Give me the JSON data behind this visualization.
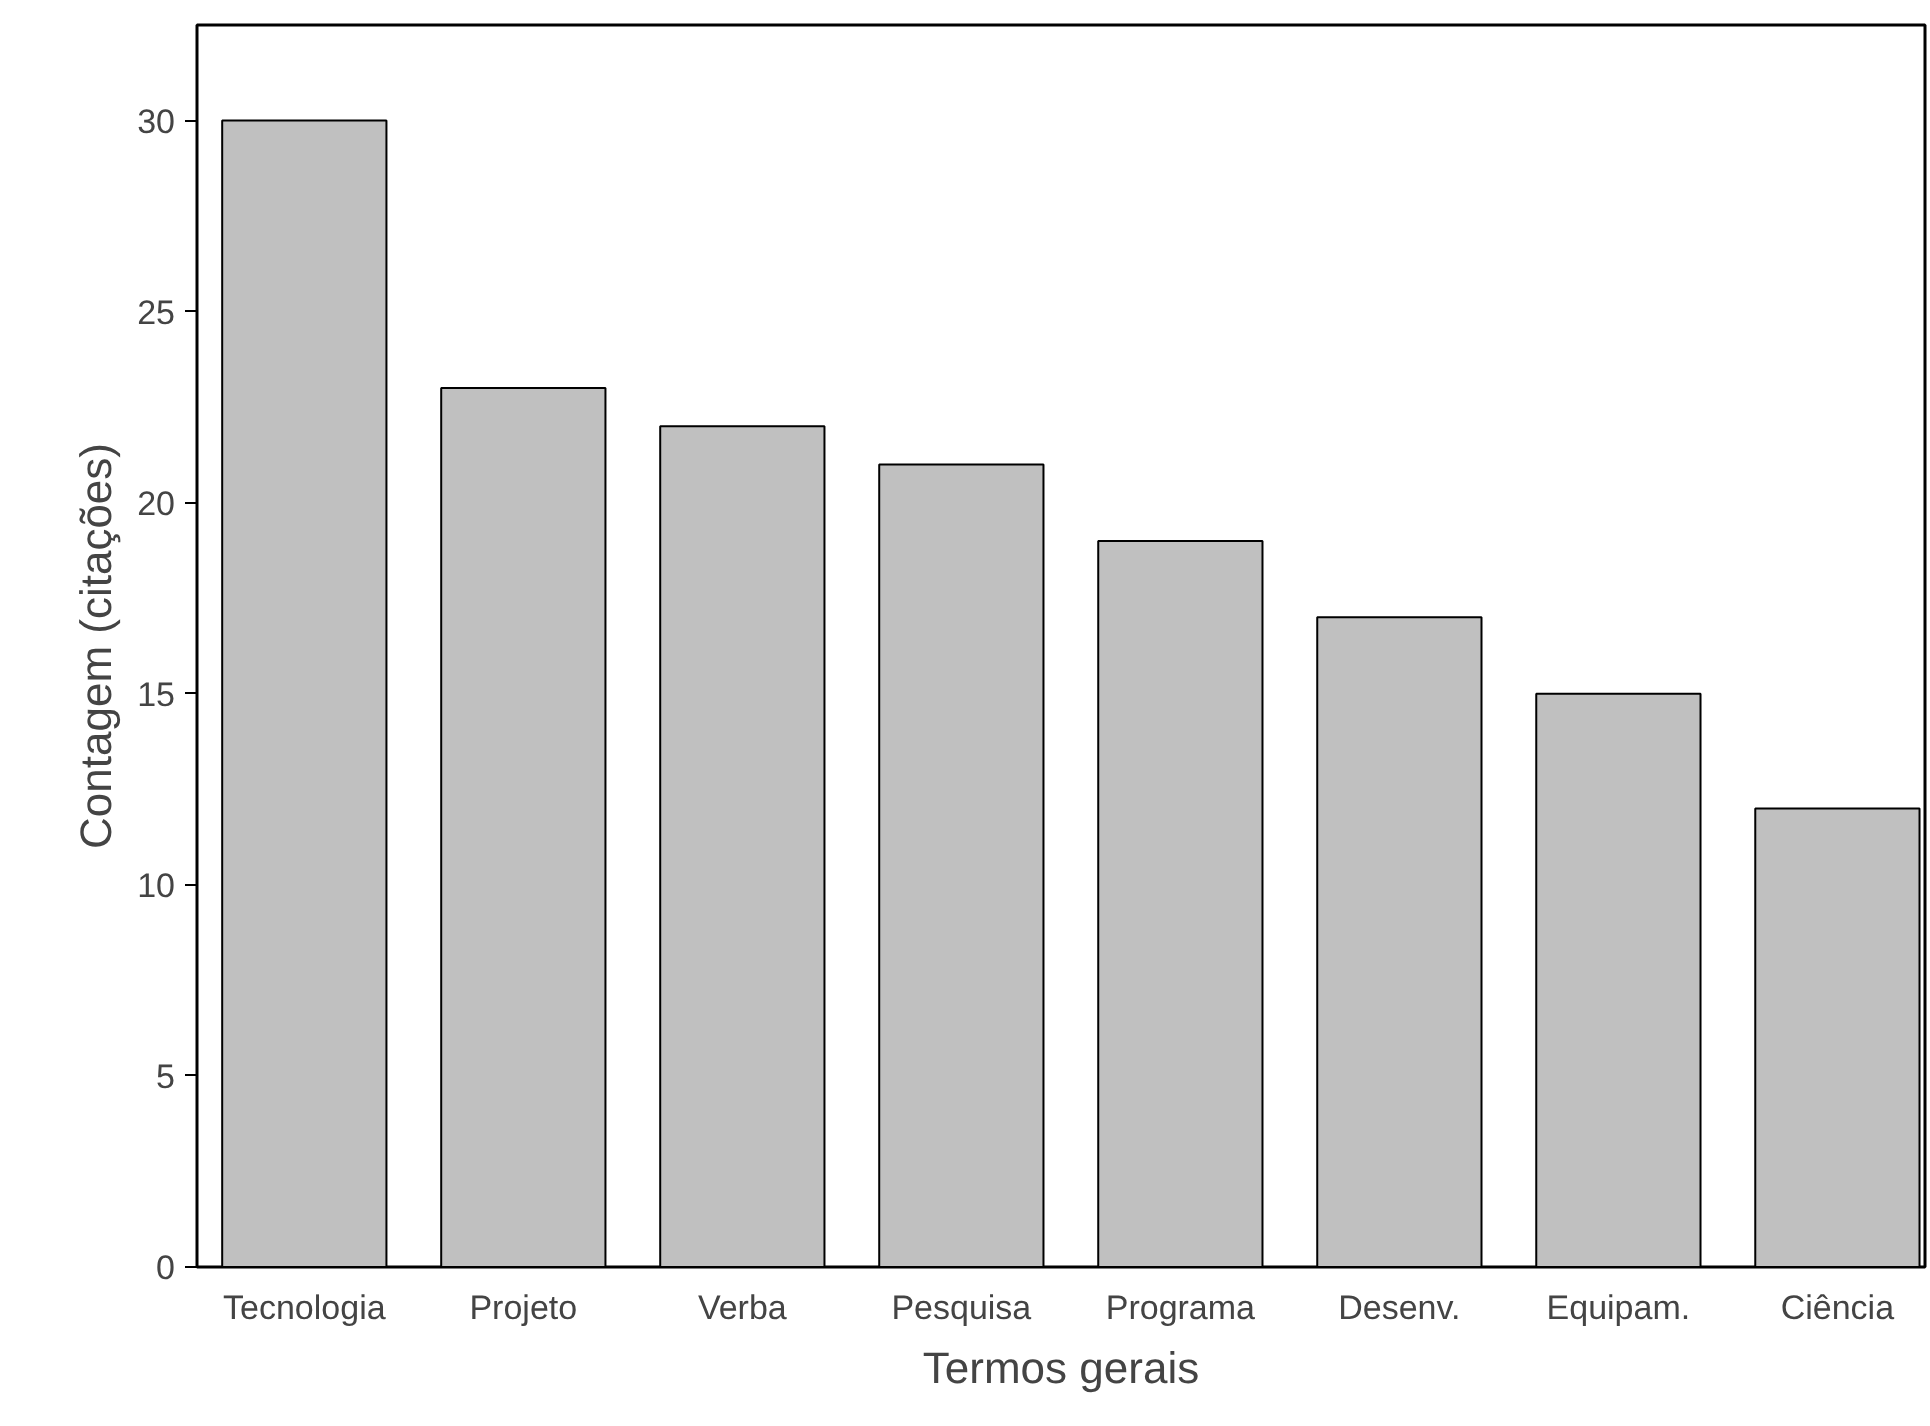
{
  "chart_data": {
    "type": "bar",
    "xlabel": "Termos gerais",
    "ylabel": "Contagem (citações)",
    "categories": [
      "Tecnologia",
      "Projeto",
      "Verba",
      "Pesquisa",
      "Programa",
      "Desenv.",
      "Equipam.",
      "Ciência"
    ],
    "values": [
      30,
      23,
      22,
      21,
      19,
      17,
      15,
      12
    ],
    "color": "#c0c0c0",
    "ylim": [
      0,
      32.5
    ],
    "yticks": [
      0,
      5,
      10,
      15,
      20,
      25,
      30
    ],
    "grid": false
  }
}
